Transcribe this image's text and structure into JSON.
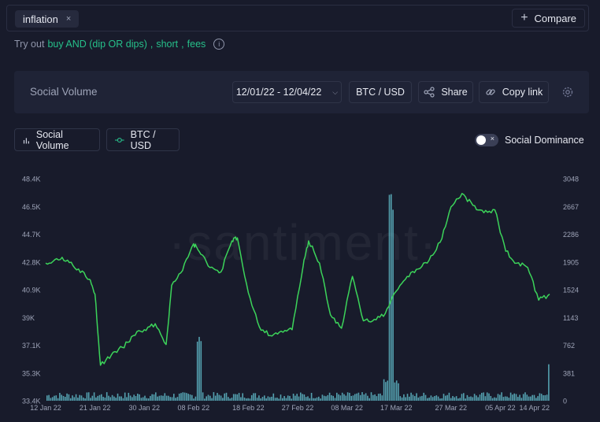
{
  "search": {
    "chip_label": "inflation",
    "chip_close": "×",
    "compare_label": "Compare"
  },
  "tryout": {
    "prefix": "Try out",
    "suggestions": [
      "buy AND (dip OR dips)",
      "short",
      "fees"
    ],
    "separator": ","
  },
  "panel": {
    "title": "Social Volume",
    "date_range": "12/01/22 - 12/04/22",
    "pair": "BTC / USD",
    "share_label": "Share",
    "copy_label": "Copy link"
  },
  "metrics": {
    "social_volume_label": "Social Volume",
    "btc_label": "BTC / USD",
    "dominance_label": "Social Dominance",
    "dominance_toggle_mark": "×"
  },
  "colors": {
    "accent_green": "#26c08a",
    "price_line": "#3cd45a",
    "volume_bar": "#5fb8c8",
    "background": "#181b2b"
  },
  "chart_data": {
    "type": "bar+line",
    "watermark": "·santiment·",
    "x_ticks": [
      "12 Jan 22",
      "21 Jan 22",
      "30 Jan 22",
      "08 Feb 22",
      "18 Feb 22",
      "27 Feb 22",
      "08 Mar 22",
      "17 Mar 22",
      "27 Mar 22",
      "05 Apr 22",
      "14 Apr 22"
    ],
    "left_axis": {
      "name": "BTC / USD",
      "ticks": [
        "48.4K",
        "46.5K",
        "44.7K",
        "42.8K",
        "40.9K",
        "39K",
        "37.1K",
        "35.3K",
        "33.4K"
      ],
      "range": [
        33400,
        48400
      ]
    },
    "right_axis": {
      "name": "Social Volume",
      "ticks": [
        "3048",
        "2667",
        "2286",
        "1905",
        "1524",
        "1143",
        "762",
        "381",
        "0"
      ],
      "range": [
        0,
        3048
      ]
    },
    "price_series": {
      "name": "BTC / USD",
      "x_dates": [
        "12 Jan",
        "14 Jan",
        "16 Jan",
        "18 Jan",
        "20 Jan",
        "21 Jan",
        "22 Jan",
        "24 Jan",
        "26 Jan",
        "28 Jan",
        "30 Jan",
        "01 Feb",
        "03 Feb",
        "04 Feb",
        "06 Feb",
        "08 Feb",
        "09 Feb",
        "11 Feb",
        "13 Feb",
        "15 Feb",
        "16 Feb",
        "18 Feb",
        "20 Feb",
        "22 Feb",
        "24 Feb",
        "26 Feb",
        "28 Feb",
        "01 Mar",
        "03 Mar",
        "05 Mar",
        "07 Mar",
        "09 Mar",
        "11 Mar",
        "13 Mar",
        "15 Mar",
        "17 Mar",
        "19 Mar",
        "21 Mar",
        "23 Mar",
        "25 Mar",
        "27 Mar",
        "29 Mar",
        "31 Mar",
        "02 Apr",
        "04 Apr",
        "06 Apr",
        "08 Apr",
        "10 Apr",
        "12 Apr",
        "14 Apr"
      ],
      "values": [
        42700,
        43000,
        42900,
        42300,
        41600,
        40600,
        35800,
        36500,
        37000,
        37800,
        38200,
        38600,
        37200,
        41200,
        42200,
        44000,
        43500,
        42400,
        42100,
        44200,
        44400,
        40700,
        38400,
        37800,
        38100,
        38200,
        42500,
        44200,
        42700,
        39200,
        38300,
        41800,
        38800,
        38900,
        39300,
        40800,
        41800,
        42300,
        42900,
        44100,
        46500,
        47400,
        46600,
        46100,
        46300,
        43500,
        42700,
        42400,
        40200,
        40600
      ]
    },
    "volume_series": {
      "name": "Social Volume",
      "baseline": 70,
      "spikes": [
        {
          "date": "09 Feb",
          "value": 920
        },
        {
          "date": "15 Mar",
          "value": 300
        },
        {
          "date": "16 Mar",
          "value": 2980
        },
        {
          "date": "17 Mar",
          "value": 280
        },
        {
          "date": "14 Apr",
          "value": 580
        }
      ]
    }
  }
}
